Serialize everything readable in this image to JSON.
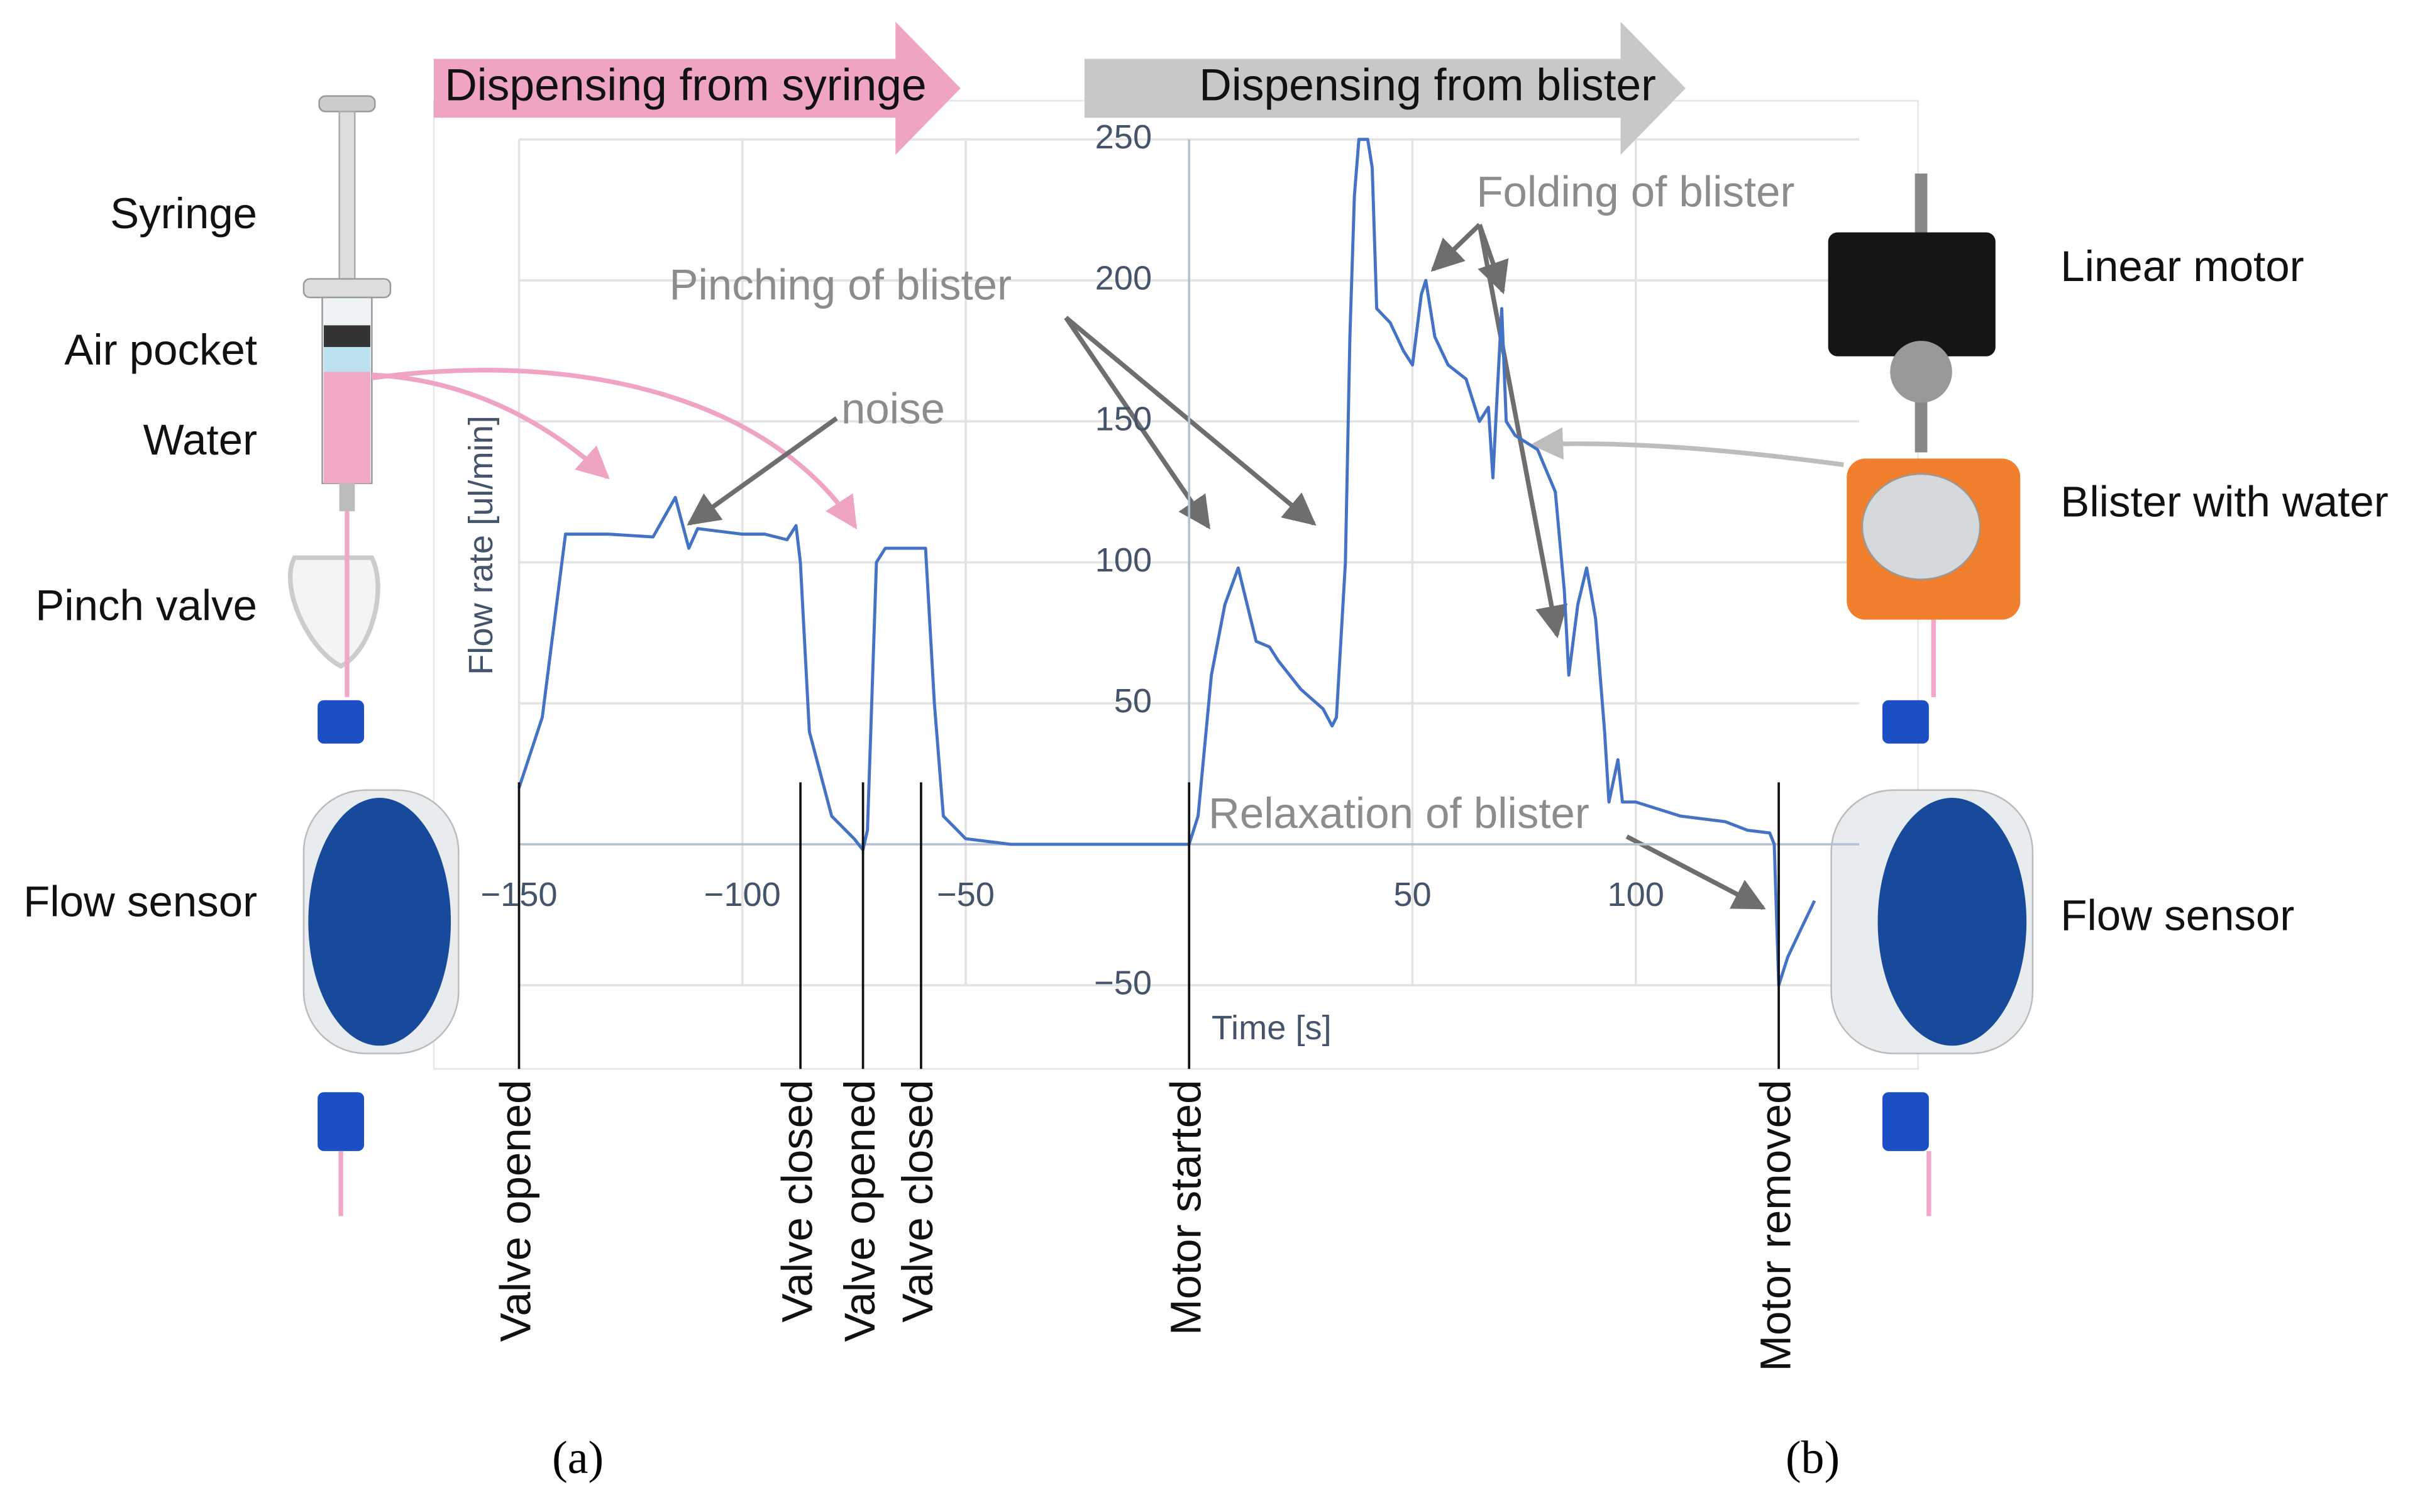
{
  "chart_data": {
    "type": "line",
    "headers": [
      "Dispensing from syringe",
      "Dispensing from blister"
    ],
    "y_label": "Flow rate [ul/min]",
    "x_label": "Time [s]",
    "color": "#4472c4",
    "xlim": [
      -150,
      150
    ],
    "ylim": [
      -50,
      250
    ],
    "xticks": [
      {
        "value": -150,
        "label": "−150"
      },
      {
        "value": -100,
        "label": "−100"
      },
      {
        "value": -50,
        "label": "−50"
      },
      50,
      100
    ],
    "yticks": [
      250,
      200,
      150,
      100,
      50,
      {
        "value": -50,
        "label": "−50"
      }
    ],
    "grid": true,
    "x": [
      -150,
      -144.8,
      -139.6,
      -130,
      -120,
      -115,
      -112,
      -110,
      -100,
      -95,
      -90,
      -88,
      -87,
      -85,
      -80,
      -75,
      -73,
      -72,
      -70,
      -68,
      -60,
      -59,
      -57,
      -55,
      -50,
      -40,
      0,
      2,
      5,
      8,
      11,
      13,
      15,
      18,
      20,
      25,
      30,
      32,
      33,
      35,
      36,
      37,
      38,
      40,
      41,
      42,
      45,
      48,
      50,
      52,
      53,
      55,
      58,
      62,
      65,
      67,
      68,
      69,
      70,
      71,
      73,
      78,
      82,
      84,
      85,
      87,
      89,
      91,
      93,
      94,
      96,
      97,
      100,
      110,
      120,
      125,
      130,
      131,
      132,
      134,
      137,
      140
    ],
    "values": [
      20,
      45,
      110,
      110,
      109,
      123,
      105,
      112,
      110,
      110,
      108,
      113,
      100,
      40,
      10,
      2,
      -2,
      5,
      100,
      105,
      105,
      105,
      50,
      10,
      2,
      0,
      0,
      10,
      60,
      85,
      98,
      85,
      72,
      70,
      65,
      55,
      48,
      42,
      45,
      100,
      180,
      230,
      250,
      250,
      240,
      190,
      185,
      175,
      170,
      195,
      200,
      180,
      170,
      165,
      150,
      155,
      130,
      160,
      190,
      150,
      145,
      140,
      125,
      90,
      60,
      85,
      98,
      80,
      40,
      15,
      30,
      15,
      15,
      10,
      8,
      5,
      4,
      0,
      -50,
      -40,
      -30,
      -20
    ],
    "annotations": [
      "noise",
      "Pinching of blister",
      "Folding of blister",
      "Relaxation of blister"
    ],
    "events": [
      {
        "label": "Valve opened",
        "x": -150
      },
      {
        "label": "Valve closed",
        "x": -87
      },
      {
        "label": "Valve opened",
        "x": -73
      },
      {
        "label": "Valve closed",
        "x": -60
      },
      {
        "label": "Motor started",
        "x": 0
      },
      {
        "label": "Motor removed",
        "x": 132
      }
    ],
    "left_labels": [
      "Syringe",
      "Air pocket",
      "Water",
      "Pinch valve",
      "Flow sensor"
    ],
    "right_labels": [
      "Linear motor",
      "Blister with water",
      "Flow sensor"
    ],
    "panels": [
      "(a)",
      "(b)"
    ]
  }
}
